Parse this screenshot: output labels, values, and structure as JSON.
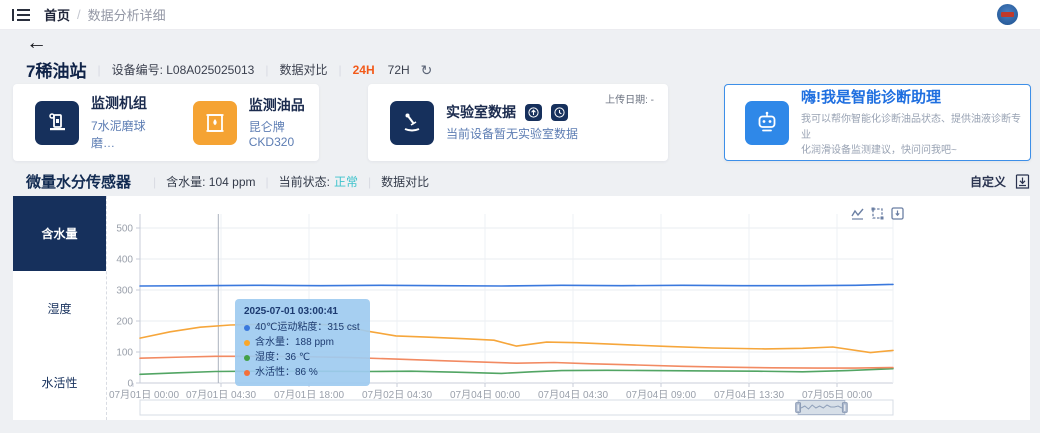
{
  "navbar": {
    "breadcrumb_home": "首页",
    "breadcrumb_sep": "/",
    "breadcrumb_current": "数据分析详细"
  },
  "icons": {
    "back": "←",
    "refresh": "↻",
    "divider": "|"
  },
  "device": {
    "name": "7稀油站",
    "code_label": "设备编号: L08A025025013",
    "compare_label": "数据对比",
    "range_24h": "24H",
    "range_72h": "72H"
  },
  "cards": {
    "unit": {
      "title": "监测机组",
      "subtitle": "7水泥磨球磨…"
    },
    "oil": {
      "title": "监测油品",
      "subtitle": "昆仑牌CKD320"
    },
    "lab": {
      "title": "实验室数据",
      "subtitle": "当前设备暂无实验室数据",
      "upload_date": "上传日期: -"
    },
    "ai": {
      "title": "嗨!我是智能诊断助理",
      "desc_line1": "我可以帮你智能化诊断油品状态、提供油液诊断专业",
      "desc_line2": "化润滑设备监测建议，快问问我吧~"
    }
  },
  "sensor_header": {
    "title": "微量水分传感器",
    "water_label": "含水量: 104 ppm",
    "status_label": "当前状态:",
    "status_value": "正常",
    "compare_label": "数据对比",
    "customize_label": "自定义"
  },
  "tabs": [
    {
      "label": "含水量",
      "active": true
    },
    {
      "label": "湿度",
      "active": false
    },
    {
      "label": "水活性",
      "active": false
    }
  ],
  "tooltip": {
    "time": "2025-07-01 03:00:41",
    "rows": [
      {
        "color": "#3a78dd",
        "label": "40℃运动粘度：",
        "value": "315 cst"
      },
      {
        "color": "#f9a72b",
        "label": "含水量：",
        "value": "188 ppm"
      },
      {
        "color": "#43a047",
        "label": "湿度：",
        "value": "36 ℃"
      },
      {
        "color": "#f4703a",
        "label": "水活性：",
        "value": "86 %"
      }
    ]
  },
  "colors": {
    "accent_orange": "#f25a1a",
    "status_teal": "#3fc3cc",
    "navy": "#16305c",
    "ai_blue": "#2f88e8"
  },
  "chart_data": {
    "type": "line",
    "title": "微量水分传感器趋势",
    "xlabel": "",
    "ylabel": "",
    "ylim": [
      0,
      500
    ],
    "yticks": [
      0,
      100,
      200,
      300,
      400,
      500
    ],
    "grid": true,
    "legend_position": "none",
    "x_labels": [
      "07月01日 00:00",
      "07月01日 04:30",
      "07月01日 18:00",
      "07月02日 04:30",
      "07月04日 00:00",
      "07月04日 04:30",
      "07月04日 09:00",
      "07月04日 13:30",
      "07月05日 00:00"
    ],
    "crosshair_x": 0.104,
    "zoom_window": [
      0.874,
      0.936
    ],
    "zoom_preview": [
      5,
      7,
      4,
      8,
      5,
      7,
      5,
      8,
      6,
      6,
      7,
      5
    ],
    "series": [
      {
        "name": "40℃运动粘度",
        "unit": "cst",
        "color": "#3a78dd",
        "points": [
          [
            0,
            313
          ],
          [
            0.08,
            314
          ],
          [
            0.16,
            315
          ],
          [
            0.24,
            314
          ],
          [
            0.32,
            315
          ],
          [
            0.4,
            314
          ],
          [
            0.48,
            313
          ],
          [
            0.56,
            315
          ],
          [
            0.64,
            314
          ],
          [
            0.72,
            315
          ],
          [
            0.8,
            314
          ],
          [
            0.88,
            314
          ],
          [
            0.95,
            315
          ],
          [
            1,
            318
          ]
        ]
      },
      {
        "name": "含水量",
        "unit": "ppm",
        "color": "#f6a63b",
        "points": [
          [
            0,
            145
          ],
          [
            0.04,
            165
          ],
          [
            0.08,
            180
          ],
          [
            0.12,
            187
          ],
          [
            0.17,
            190
          ],
          [
            0.23,
            190
          ],
          [
            0.27,
            185
          ],
          [
            0.3,
            168
          ],
          [
            0.34,
            152
          ],
          [
            0.38,
            148
          ],
          [
            0.43,
            143
          ],
          [
            0.47,
            138
          ],
          [
            0.5,
            119
          ],
          [
            0.54,
            132
          ],
          [
            0.58,
            130
          ],
          [
            0.64,
            124
          ],
          [
            0.7,
            118
          ],
          [
            0.76,
            113
          ],
          [
            0.83,
            110
          ],
          [
            0.88,
            112
          ],
          [
            0.92,
            116
          ],
          [
            0.97,
            98
          ],
          [
            1,
            105
          ]
        ]
      },
      {
        "name": "湿度",
        "unit": "℃",
        "color": "#52a564",
        "points": [
          [
            0,
            28
          ],
          [
            0.05,
            33
          ],
          [
            0.1,
            37
          ],
          [
            0.15,
            38
          ],
          [
            0.22,
            38
          ],
          [
            0.3,
            37
          ],
          [
            0.36,
            38
          ],
          [
            0.42,
            35
          ],
          [
            0.48,
            31
          ],
          [
            0.52,
            36
          ],
          [
            0.56,
            40
          ],
          [
            0.62,
            41
          ],
          [
            0.68,
            40
          ],
          [
            0.75,
            39
          ],
          [
            0.82,
            38
          ],
          [
            0.88,
            36
          ],
          [
            0.94,
            40
          ],
          [
            1,
            46
          ]
        ]
      },
      {
        "name": "水活性",
        "unit": "%",
        "color": "#f28a62",
        "points": [
          [
            0,
            80
          ],
          [
            0.06,
            84
          ],
          [
            0.1,
            86
          ],
          [
            0.16,
            86
          ],
          [
            0.22,
            85
          ],
          [
            0.28,
            82
          ],
          [
            0.34,
            77
          ],
          [
            0.4,
            72
          ],
          [
            0.46,
            67
          ],
          [
            0.5,
            64
          ],
          [
            0.55,
            66
          ],
          [
            0.6,
            62
          ],
          [
            0.66,
            58
          ],
          [
            0.72,
            54
          ],
          [
            0.78,
            51
          ],
          [
            0.84,
            49
          ],
          [
            0.9,
            48
          ],
          [
            0.95,
            48
          ],
          [
            1,
            50
          ]
        ]
      }
    ]
  }
}
